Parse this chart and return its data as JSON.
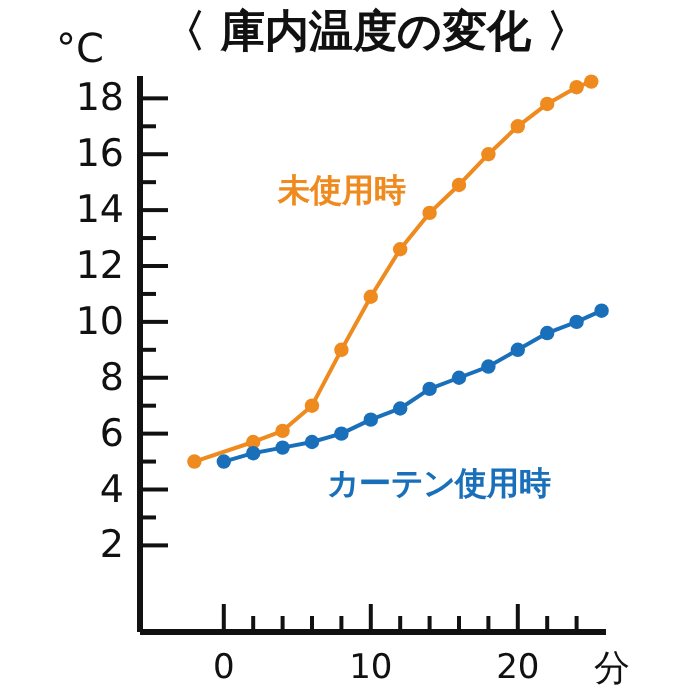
{
  "chart_data": {
    "type": "line",
    "title": "〈 庫内温度の変化 〉",
    "ylabel": "°C",
    "xlabel": "分",
    "series": [
      {
        "name": "未使用時",
        "color": "#ee8a1e",
        "x": [
          -2,
          2,
          4,
          6,
          8,
          10,
          12,
          14,
          16,
          18,
          20,
          22,
          24,
          25
        ],
        "values": [
          5.0,
          5.7,
          6.1,
          7.0,
          9.0,
          10.9,
          12.6,
          13.9,
          14.9,
          16.0,
          17.0,
          17.8,
          18.4,
          18.6
        ]
      },
      {
        "name": "カーテン使用時",
        "color": "#1a6fba",
        "x": [
          0,
          2,
          4,
          6,
          8,
          10,
          12,
          14,
          16,
          18,
          20,
          22,
          24,
          25.7
        ],
        "values": [
          5.0,
          5.3,
          5.5,
          5.7,
          6.0,
          6.5,
          6.9,
          7.6,
          8.0,
          8.4,
          9.0,
          9.6,
          10.0,
          10.4
        ]
      }
    ],
    "xlim": [
      -5.7,
      26
    ],
    "ylim": [
      -1.1,
      18.8
    ],
    "xticks": [
      0,
      {
        "value": 2,
        "label": null
      },
      {
        "value": 4,
        "label": null
      },
      {
        "value": 6,
        "label": null
      },
      {
        "value": 8,
        "label": null
      },
      10,
      {
        "value": 12,
        "label": null
      },
      {
        "value": 14,
        "label": null
      },
      {
        "value": 16,
        "label": null
      },
      {
        "value": 18,
        "label": null
      },
      20,
      {
        "value": 22,
        "label": null
      },
      {
        "value": 24,
        "label": null
      }
    ],
    "yticks": [
      2,
      {
        "value": 3,
        "label": null
      },
      4,
      {
        "value": 5,
        "label": null
      },
      6,
      {
        "value": 7,
        "label": null
      },
      8,
      {
        "value": 9,
        "label": null
      },
      10,
      {
        "value": 11,
        "label": null
      },
      12,
      {
        "value": 13,
        "label": null
      },
      14,
      {
        "value": 15,
        "label": null
      },
      16,
      {
        "value": 17,
        "label": null
      },
      18
    ],
    "marker": "circle",
    "line_style": "solid",
    "grid": false,
    "legend": false
  }
}
